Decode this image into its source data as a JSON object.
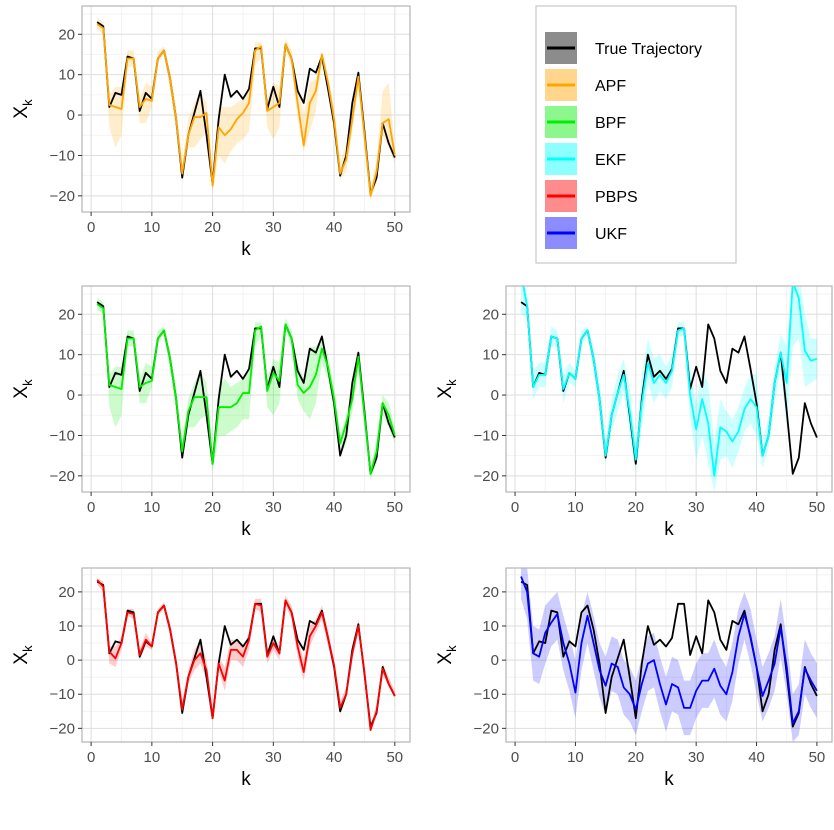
{
  "legend": {
    "items": [
      {
        "label": "True Trajectory",
        "color": "#000000"
      },
      {
        "label": "APF",
        "color": "#FFA500"
      },
      {
        "label": "BPF",
        "color": "#00EE00"
      },
      {
        "label": "EKF",
        "color": "#00FFFF"
      },
      {
        "label": "PBPS",
        "color": "#FF0000"
      },
      {
        "label": "UKF",
        "color": "#0000FF"
      }
    ]
  },
  "chart_data": [
    {
      "type": "line",
      "panel": "top-left",
      "method": "APF",
      "color": "#FFA500",
      "xlabel": "k",
      "ylabel_main": "X",
      "ylabel_sub": "k",
      "xlim": [
        -1.5,
        52.5
      ],
      "ylim": [
        -24,
        27
      ],
      "xticks": [
        0,
        10,
        20,
        30,
        40,
        50
      ],
      "yticks": [
        -20,
        -10,
        0,
        10,
        20
      ],
      "x": [
        1,
        2,
        3,
        4,
        5,
        6,
        7,
        8,
        9,
        10,
        11,
        12,
        13,
        14,
        15,
        16,
        17,
        18,
        19,
        20,
        21,
        22,
        23,
        24,
        25,
        26,
        27,
        28,
        29,
        30,
        31,
        32,
        33,
        34,
        35,
        36,
        37,
        38,
        39,
        40,
        41,
        42,
        43,
        44,
        45,
        46,
        47,
        48,
        49,
        50
      ],
      "true": [
        23,
        22,
        2,
        5.5,
        5,
        14.5,
        14,
        1,
        5.5,
        4,
        14,
        16,
        9,
        -1,
        -15.5,
        -5,
        0.5,
        6,
        -5,
        -17,
        -1,
        10,
        4.5,
        6,
        4,
        6.5,
        16.5,
        16.5,
        1.5,
        7,
        2,
        17.5,
        14,
        6,
        3,
        11.5,
        10.5,
        14.5,
        6.5,
        -2,
        -15,
        -10,
        3,
        10.5,
        -4,
        -19.5,
        -15.5,
        -2,
        -7,
        -10.5
      ],
      "estimate": [
        22.5,
        21.5,
        2.5,
        2,
        1.5,
        14,
        14,
        2,
        4,
        3.5,
        14,
        16,
        9,
        -1,
        -14.5,
        -5,
        -0.5,
        -0.5,
        0.5,
        -17.5,
        -3,
        -5,
        -3.5,
        -1,
        0.5,
        3,
        16,
        17,
        1,
        2,
        3,
        17.5,
        14,
        3,
        -7.5,
        3,
        6,
        15,
        8,
        -1,
        -14.5,
        -11,
        -1,
        9.5,
        -5,
        -20,
        -14,
        -2,
        -1,
        -10
      ],
      "lower": [
        21,
        20,
        -3,
        -8,
        -5,
        12,
        12,
        -2,
        -2,
        2,
        13,
        15,
        6,
        -4,
        -16,
        -8,
        -8,
        -6,
        -4,
        -19,
        -10,
        -12,
        -9,
        -7,
        -6,
        -4,
        12,
        15,
        -3,
        -6,
        -3,
        16,
        12,
        -1,
        -9,
        -4,
        1,
        13,
        5,
        -5,
        -16,
        -14,
        -4,
        7,
        -8,
        -21,
        -17,
        -5,
        -8,
        -12
      ],
      "upper": [
        24,
        23,
        5,
        7,
        7,
        16,
        16,
        4,
        8,
        7,
        16,
        17,
        11,
        2,
        -12,
        -1,
        3,
        6,
        3,
        -15,
        2,
        2,
        2,
        3,
        4,
        7,
        18,
        18,
        4,
        8,
        7,
        19,
        16,
        8,
        0,
        8,
        9,
        16,
        10,
        2,
        -12,
        -7,
        2,
        11,
        -2,
        -18,
        -11,
        6,
        8,
        -8
      ]
    },
    {
      "type": "line",
      "panel": "middle-left",
      "method": "BPF",
      "color": "#00EE00",
      "xlabel": "k",
      "ylabel_main": "X",
      "ylabel_sub": "k",
      "xlim": [
        -1.5,
        52.5
      ],
      "ylim": [
        -24,
        27
      ],
      "xticks": [
        0,
        10,
        20,
        30,
        40,
        50
      ],
      "yticks": [
        -20,
        -10,
        0,
        10,
        20
      ],
      "x": [
        1,
        2,
        3,
        4,
        5,
        6,
        7,
        8,
        9,
        10,
        11,
        12,
        13,
        14,
        15,
        16,
        17,
        18,
        19,
        20,
        21,
        22,
        23,
        24,
        25,
        26,
        27,
        28,
        29,
        30,
        31,
        32,
        33,
        34,
        35,
        36,
        37,
        38,
        39,
        40,
        41,
        42,
        43,
        44,
        45,
        46,
        47,
        48,
        49,
        50
      ],
      "true": [
        23,
        22,
        2,
        5.5,
        5,
        14.5,
        14,
        1,
        5.5,
        4,
        14,
        16,
        9,
        -1,
        -15.5,
        -5,
        0.5,
        6,
        -5,
        -17,
        -1,
        10,
        4.5,
        6,
        4,
        6.5,
        16.5,
        16.5,
        1.5,
        7,
        2,
        17.5,
        14,
        6,
        3,
        11.5,
        10.5,
        14.5,
        6.5,
        -2,
        -15,
        -10,
        3,
        10.5,
        -4,
        -19.5,
        -15.5,
        -2,
        -7,
        -10.5
      ],
      "estimate": [
        22.5,
        21.5,
        2.5,
        2,
        1.5,
        14,
        14,
        2,
        3,
        3.5,
        14,
        16,
        9,
        -1,
        -14,
        -4,
        -0.5,
        -0.5,
        -0.5,
        -17,
        -3,
        -3,
        -3,
        -2,
        0.5,
        0.5,
        16,
        17,
        1,
        5.5,
        3.5,
        17.5,
        14,
        2.5,
        0.5,
        2,
        5,
        11.5,
        7,
        -1,
        -12,
        -7,
        -1,
        9.5,
        -5,
        -19.5,
        -14,
        -2,
        -5,
        -10
      ],
      "lower": [
        21,
        20,
        -3,
        -8,
        -5,
        12,
        12,
        -2,
        -2,
        2,
        13,
        15,
        6,
        -4,
        -16,
        -8,
        -8,
        -6,
        -5,
        -19,
        -10,
        -10,
        -9,
        -8,
        -6,
        -6,
        12,
        15,
        -3,
        -5,
        -2,
        16,
        12,
        -1,
        -4,
        -6,
        -2,
        8,
        4,
        -4,
        -15,
        -12,
        -4,
        7,
        -8,
        -21,
        -17,
        -5,
        -8,
        -12
      ],
      "upper": [
        24,
        23,
        5,
        7,
        7,
        16,
        16,
        4,
        8,
        7,
        16,
        17,
        11,
        2,
        -12,
        -1,
        3,
        6,
        3,
        -15,
        2,
        4,
        2,
        3,
        4,
        7,
        18,
        18,
        4,
        9,
        8,
        19,
        16,
        8,
        4,
        12,
        12,
        14,
        10,
        2,
        -10,
        -5,
        2,
        11,
        -2,
        -18,
        -11,
        0,
        -2,
        -8
      ]
    },
    {
      "type": "line",
      "panel": "middle-right",
      "method": "EKF",
      "color": "#00FFFF",
      "xlabel": "k",
      "ylabel_main": "X",
      "ylabel_sub": "k",
      "xlim": [
        -1.5,
        52.5
      ],
      "ylim": [
        -24,
        27
      ],
      "xticks": [
        0,
        10,
        20,
        30,
        40,
        50
      ],
      "yticks": [
        -20,
        -10,
        0,
        10,
        20
      ],
      "x": [
        1,
        2,
        3,
        4,
        5,
        6,
        7,
        8,
        9,
        10,
        11,
        12,
        13,
        14,
        15,
        16,
        17,
        18,
        19,
        20,
        21,
        22,
        23,
        24,
        25,
        26,
        27,
        28,
        29,
        30,
        31,
        32,
        33,
        34,
        35,
        36,
        37,
        38,
        39,
        40,
        41,
        42,
        43,
        44,
        45,
        46,
        47,
        48,
        49,
        50
      ],
      "true": [
        23,
        22,
        2,
        5.5,
        5,
        14.5,
        14,
        1,
        5.5,
        4,
        14,
        16,
        9,
        -1,
        -15.5,
        -5,
        0.5,
        6,
        -5,
        -17,
        -1,
        10,
        4.5,
        6,
        4,
        6.5,
        16.5,
        16.5,
        1.5,
        7,
        2,
        17.5,
        14,
        6,
        3,
        11.5,
        10.5,
        14.5,
        6.5,
        -2,
        -15,
        -10,
        3,
        10.5,
        -4,
        -19.5,
        -15.5,
        -2,
        -7,
        -10.5
      ],
      "estimate": [
        30,
        22,
        2,
        5,
        5,
        14.5,
        14,
        1.5,
        5.5,
        4,
        14,
        16,
        9,
        -1,
        -15,
        -5,
        0.5,
        5,
        -4,
        -16,
        -2,
        8,
        3,
        5,
        3,
        6,
        16,
        16.5,
        0,
        -8.5,
        -1,
        -7,
        -20,
        -8,
        -9,
        -11.5,
        -9,
        -3.5,
        -1,
        -3,
        -15,
        -10,
        3,
        10.5,
        3,
        28,
        24,
        11,
        8.5,
        9
      ],
      "lower": [
        20,
        19,
        -1,
        2,
        2,
        12,
        12,
        -2,
        3,
        2,
        12,
        15,
        6,
        -5,
        -17,
        -9,
        -4,
        1,
        -10,
        -19,
        -8,
        3,
        -2,
        1,
        -1,
        2,
        14,
        15,
        -6,
        -16,
        -10,
        -17,
        -24,
        -16,
        -15,
        -18,
        -14,
        -9,
        -7,
        -10,
        -18,
        -13,
        -2,
        6,
        -8,
        12,
        14,
        2,
        3,
        4
      ],
      "upper": [
        30,
        25,
        6,
        8,
        8,
        17,
        16,
        5,
        8,
        6,
        16,
        17,
        12,
        3,
        -12,
        -1,
        5,
        9,
        2,
        -12,
        5,
        14,
        9,
        10,
        7,
        10,
        18,
        18,
        6,
        -2,
        6,
        3,
        -12,
        -1,
        -4,
        -6,
        -3,
        2,
        5,
        5,
        -11,
        -6,
        7,
        15,
        12,
        30,
        30,
        20,
        14,
        14
      ]
    },
    {
      "type": "line",
      "panel": "bottom-left",
      "method": "PBPS",
      "color": "#FF0000",
      "xlabel": "k",
      "ylabel_main": "X",
      "ylabel_sub": "k",
      "xlim": [
        -1.5,
        52.5
      ],
      "ylim": [
        -24,
        27
      ],
      "xticks": [
        0,
        10,
        20,
        30,
        40,
        50
      ],
      "yticks": [
        -20,
        -10,
        0,
        10,
        20
      ],
      "x": [
        1,
        2,
        3,
        4,
        5,
        6,
        7,
        8,
        9,
        10,
        11,
        12,
        13,
        14,
        15,
        16,
        17,
        18,
        19,
        20,
        21,
        22,
        23,
        24,
        25,
        26,
        27,
        28,
        29,
        30,
        31,
        32,
        33,
        34,
        35,
        36,
        37,
        38,
        39,
        40,
        41,
        42,
        43,
        44,
        45,
        46,
        47,
        48,
        49,
        50
      ],
      "true": [
        23,
        22,
        2,
        5.5,
        5,
        14.5,
        14,
        1,
        5.5,
        4,
        14,
        16,
        9,
        -1,
        -15.5,
        -5,
        0.5,
        6,
        -5,
        -17,
        -1,
        10,
        4.5,
        6,
        4,
        6.5,
        16.5,
        16.5,
        1.5,
        7,
        2,
        17.5,
        14,
        6,
        3,
        11.5,
        10.5,
        14.5,
        6.5,
        -2,
        -15,
        -10,
        3,
        10.5,
        -4,
        -19.5,
        -15.5,
        -2,
        -7,
        -10.5
      ],
      "estimate": [
        23.5,
        21.5,
        2.5,
        0.5,
        5,
        14,
        13.5,
        1.5,
        6,
        4,
        14,
        16,
        9,
        -1,
        -14.5,
        -5,
        0,
        2,
        -3,
        -17,
        -1,
        -6,
        3,
        3,
        1,
        6,
        16.5,
        16,
        1,
        5,
        2,
        17.5,
        14,
        4,
        -3.5,
        7,
        10,
        14,
        6.5,
        -1.5,
        -14,
        -10,
        2,
        10,
        -3.5,
        -20.5,
        -15,
        -2.5,
        -7,
        -10.5
      ],
      "lower": [
        22,
        20,
        -1,
        -2,
        3,
        13,
        12,
        0,
        4,
        3,
        13,
        15,
        7,
        -3,
        -16,
        -7,
        -3,
        -1,
        -6,
        -18,
        -3,
        -9,
        0,
        0,
        -2,
        3,
        15,
        14,
        -1,
        3,
        0,
        16,
        12,
        1,
        -6,
        4,
        8,
        12,
        4,
        -3,
        -16,
        -11,
        0,
        8,
        -5,
        -21,
        -16,
        -4,
        -8,
        -11
      ],
      "upper": [
        24,
        23,
        4,
        4,
        7,
        15,
        15,
        3,
        8,
        5,
        15,
        17,
        11,
        1,
        -12,
        -3,
        3,
        6,
        0,
        -15,
        1,
        -2,
        6,
        6,
        4,
        8,
        18,
        18,
        3,
        7,
        4,
        19,
        16,
        7,
        0,
        10,
        12,
        16,
        9,
        0,
        -12,
        -8,
        4,
        12,
        -2,
        -19,
        -13,
        -1,
        -5,
        -9
      ]
    },
    {
      "type": "line",
      "panel": "bottom-right",
      "method": "UKF",
      "color": "#0000FF",
      "xlabel": "k",
      "ylabel_main": "X",
      "ylabel_sub": "k",
      "xlim": [
        -1.5,
        52.5
      ],
      "ylim": [
        -24,
        27
      ],
      "xticks": [
        0,
        10,
        20,
        30,
        40,
        50
      ],
      "yticks": [
        -20,
        -10,
        0,
        10,
        20
      ],
      "x": [
        1,
        2,
        3,
        4,
        5,
        6,
        7,
        8,
        9,
        10,
        11,
        12,
        13,
        14,
        15,
        16,
        17,
        18,
        19,
        20,
        21,
        22,
        23,
        24,
        25,
        26,
        27,
        28,
        29,
        30,
        31,
        32,
        33,
        34,
        35,
        36,
        37,
        38,
        39,
        40,
        41,
        42,
        43,
        44,
        45,
        46,
        47,
        48,
        49,
        50
      ],
      "true": [
        23,
        22,
        2,
        5.5,
        5,
        14.5,
        14,
        1,
        5.5,
        4,
        14,
        16,
        9,
        -1,
        -15.5,
        -5,
        0.5,
        6,
        -5,
        -17,
        -1,
        10,
        4.5,
        6,
        4,
        6.5,
        16.5,
        16.5,
        1.5,
        7,
        2,
        17.5,
        14,
        6,
        3,
        11.5,
        10.5,
        14.5,
        6.5,
        -2,
        -15,
        -10,
        3,
        10.5,
        -4,
        -19.5,
        -15.5,
        -2,
        -7,
        -10.5
      ],
      "estimate": [
        24.5,
        20,
        2,
        1,
        8,
        11,
        13.5,
        5,
        -1,
        -9.5,
        5,
        13,
        5,
        -3,
        -7.5,
        -1,
        -2,
        -8,
        -10,
        -14.5,
        -7,
        -1,
        0,
        -7,
        -13,
        -7,
        -8,
        -14,
        -14,
        -9,
        -6,
        -6,
        -2.5,
        -7.5,
        -10,
        -3.5,
        7,
        13.5,
        7,
        -2,
        -10.5,
        -6,
        -1,
        9.5,
        -2,
        -18.5,
        -15,
        -2.5,
        -6,
        -9
      ],
      "lower": [
        18,
        12,
        -6,
        -7,
        -1,
        4,
        6,
        -3,
        -9,
        -17,
        -3,
        5,
        -3,
        -11,
        -16,
        -9,
        -10,
        -16,
        -18,
        -22,
        -15,
        -9,
        -8,
        -15,
        -21,
        -15,
        -16,
        -22,
        -22,
        -17,
        -14,
        -14,
        -11,
        -16,
        -18,
        -12,
        -1,
        6,
        -1,
        -10,
        -18,
        -14,
        -9,
        1,
        -10,
        -24,
        -22,
        -10,
        -14,
        -17
      ],
      "upper": [
        27,
        27,
        10,
        9,
        16,
        18,
        20,
        13,
        7,
        0,
        13,
        20,
        13,
        5,
        1,
        7,
        6,
        0,
        -2,
        -6,
        1,
        7,
        8,
        1,
        -5,
        1,
        0,
        -6,
        -6,
        -1,
        2,
        2,
        6,
        1,
        -2,
        5,
        15,
        20,
        15,
        6,
        -2,
        2,
        7,
        18,
        6,
        -10,
        -7,
        6,
        2,
        -1
      ]
    }
  ]
}
